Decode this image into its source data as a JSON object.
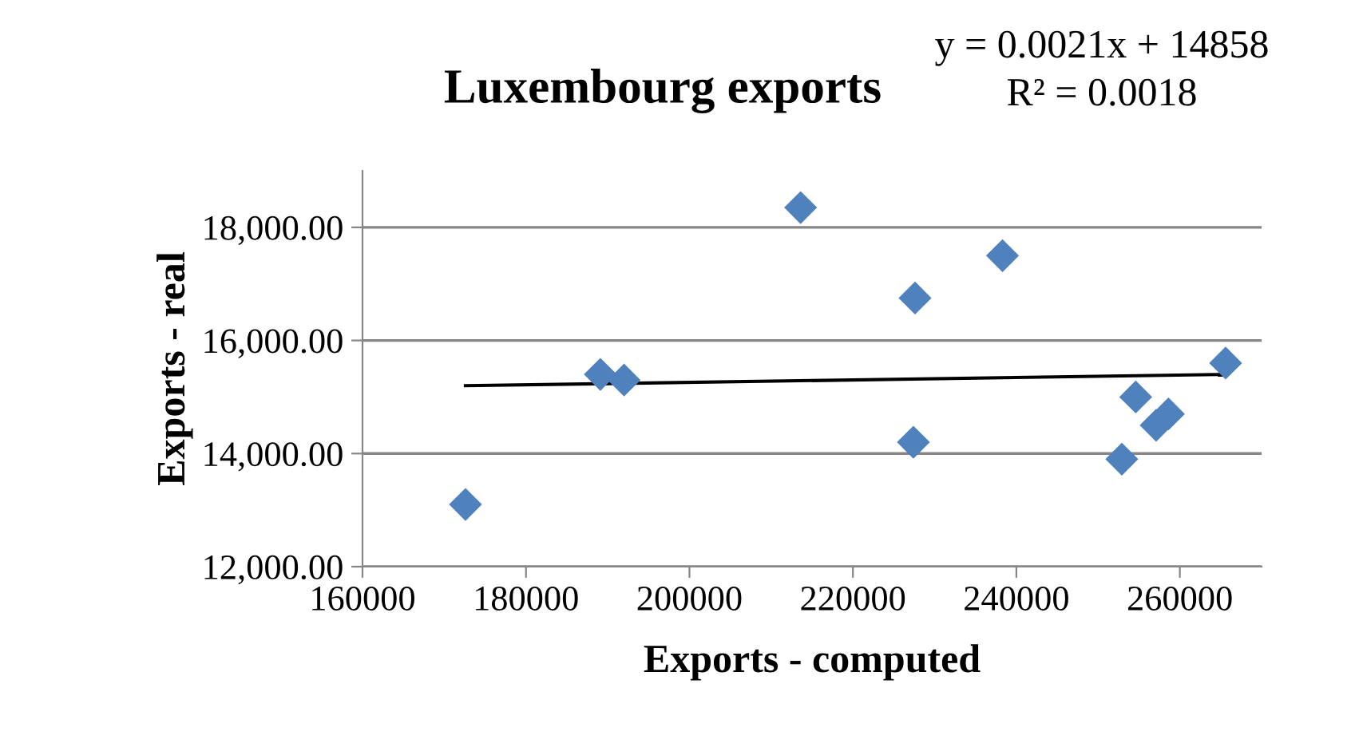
{
  "chart_data": {
    "type": "scatter",
    "title": "Luxembourg exports",
    "xlabel": "Exports - computed",
    "ylabel": "Exports - real",
    "xlim": [
      160000,
      270000
    ],
    "xticks": [
      160000,
      180000,
      200000,
      220000,
      240000,
      260000
    ],
    "ylim": [
      12000,
      19000
    ],
    "yticks": [
      {
        "value": 12000,
        "label": "12,000.00"
      },
      {
        "value": 14000,
        "label": "14,000.00"
      },
      {
        "value": 16000,
        "label": "16,000.00"
      },
      {
        "value": 18000,
        "label": "18,000.00"
      }
    ],
    "grid": "y",
    "series": [
      {
        "marker": "diamond",
        "color": "#4f81bd",
        "x": [
          172600,
          189100,
          192000,
          213600,
          227600,
          227400,
          238300,
          252900,
          254600,
          257100,
          258600,
          265600
        ],
        "values": [
          13100,
          15400,
          15300,
          18350,
          16750,
          14200,
          17500,
          13900,
          15000,
          14500,
          14700,
          15600
        ]
      },
      {
        "type": "line",
        "marker": "none",
        "color": "#000000",
        "x": [
          172600,
          265600
        ],
        "values": [
          15200,
          15400
        ]
      }
    ],
    "annotations": [
      "y = 0.0021x + 14858",
      "R² = 0.0018"
    ]
  }
}
